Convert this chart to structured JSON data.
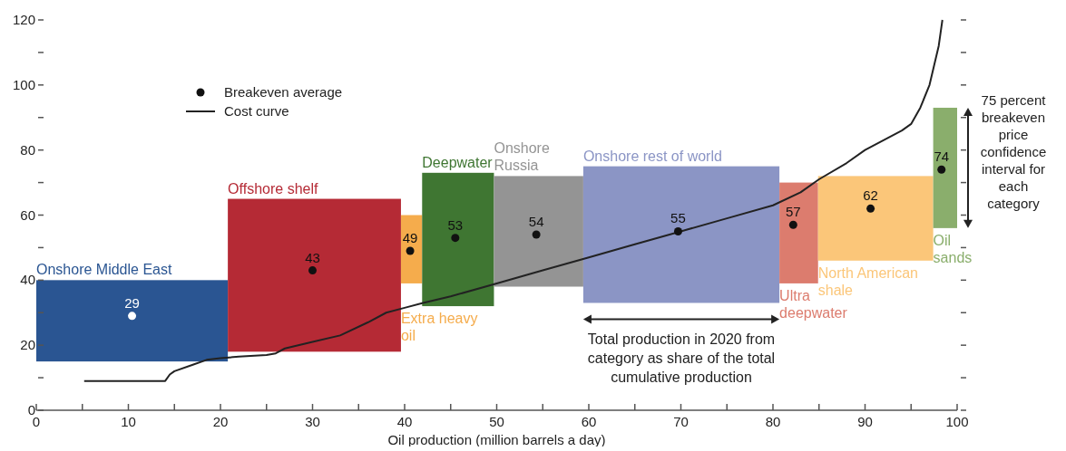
{
  "chart_data": {
    "type": "bar",
    "xlabel": "Oil production (million barrels a day)",
    "xlim": [
      0,
      100
    ],
    "ylim": [
      0,
      120
    ],
    "xticks": [
      0,
      {
        "value": 5,
        "label": null
      },
      10,
      {
        "value": 15,
        "label": null
      },
      20,
      {
        "value": 25,
        "label": null
      },
      30,
      {
        "value": 35,
        "label": null
      },
      40,
      {
        "value": 45,
        "label": null
      },
      50,
      {
        "value": 55,
        "label": null
      },
      60,
      {
        "value": 65,
        "label": null
      },
      70,
      {
        "value": 75,
        "label": null
      },
      80,
      {
        "value": 85,
        "label": null
      },
      90,
      {
        "value": 95,
        "label": null
      },
      100
    ],
    "yticks": [
      0,
      {
        "value": 10,
        "label": null
      },
      20,
      {
        "value": 30,
        "label": null
      },
      40,
      {
        "value": 50,
        "label": null
      },
      60,
      {
        "value": 70,
        "label": null
      },
      80,
      {
        "value": 90,
        "label": null
      },
      100,
      {
        "value": 110,
        "label": null
      },
      120
    ],
    "legend": "top left",
    "grid": false,
    "series": [
      {
        "x": [
          10.4,
          30.2,
          40.75,
          45.8,
          54.55,
          70.05,
          82.8,
          91.15,
          98.7
        ],
        "base": [
          15,
          18,
          39,
          32,
          38,
          33,
          39,
          46,
          56
        ],
        "values": [
          25,
          47,
          21,
          41,
          34,
          42,
          31,
          26,
          37
        ],
        "colors": [
          "#2a5592",
          "#b52a35",
          "#f5ac4c",
          "#3f7632",
          "#949494",
          "#8b95c5",
          "#dc7c6e",
          "#fbc679",
          "#8aae6c"
        ]
      },
      {
        "type": "scatter",
        "name": "Breakeven average",
        "x": [
          10.4,
          30,
          40.6,
          45.5,
          54.3,
          69.7,
          82.2,
          90.6,
          98.3
        ],
        "values": [
          29,
          43,
          49,
          53,
          54,
          55,
          57,
          62,
          74
        ],
        "colors": [
          "#ffffff",
          "#111111",
          "#111111",
          "#111111",
          "#111111",
          "#111111",
          "#111111",
          "#111111",
          "#111111"
        ],
        "marker": "circle",
        "data_labels": true
      },
      {
        "type": "line",
        "name": "Cost curve",
        "color": "#222222",
        "line_style": "solid",
        "x": [
          5.2,
          14,
          14.5,
          15,
          17,
          18.5,
          20,
          22,
          25,
          26,
          27,
          30,
          33,
          36,
          38,
          40,
          42,
          45,
          50,
          55,
          60,
          65,
          70,
          75,
          80,
          83,
          85,
          88,
          90,
          92,
          94,
          95,
          96,
          97,
          97.5,
          98,
          98.3,
          98.4
        ],
        "values": [
          9,
          9,
          11,
          12,
          14,
          15.5,
          16,
          16.5,
          17,
          17.5,
          19,
          21,
          23,
          27,
          30,
          31.5,
          33,
          35,
          39,
          43,
          47,
          51,
          55,
          59,
          63,
          67,
          71,
          76,
          80,
          83,
          86,
          88,
          93,
          100,
          106,
          112,
          118,
          120
        ]
      }
    ],
    "annotations": [
      "Onshore Middle East",
      "Offshore shelf",
      "Extra heavy\noil",
      "Deepwater",
      "Onshore\nRussia",
      "Onshore rest of world",
      "Ultra\ndeepwater",
      "North American\nshale",
      "Oil\nsands",
      "Total production in 2020 from\ncategory as share of the total\ncumulative production",
      "75 percent\nbreakeven\nprice\nconfidence\ninterval for\neach\ncategory"
    ]
  }
}
